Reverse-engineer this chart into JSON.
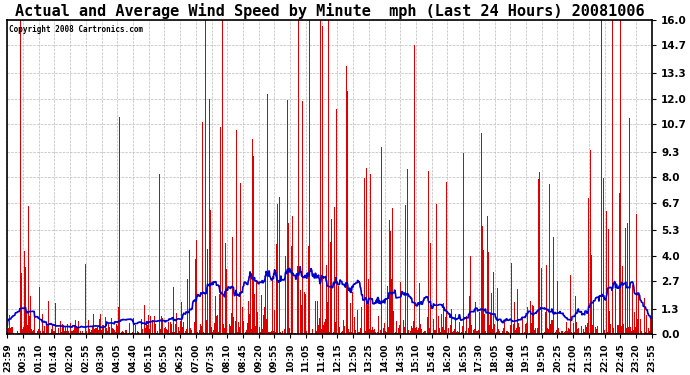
{
  "title": "Actual and Average Wind Speed by Minute  mph (Last 24 Hours) 20081006",
  "copyright": "Copyright 2008 Cartronics.com",
  "yticks": [
    0.0,
    1.3,
    2.7,
    4.0,
    5.3,
    6.7,
    8.0,
    9.3,
    10.7,
    12.0,
    13.3,
    14.7,
    16.0
  ],
  "ymax": 16.0,
  "ymin": 0.0,
  "bar_color": "#dd0000",
  "line_color": "#0000cc",
  "background_color": "#ffffff",
  "plot_bg_color": "#ffffff",
  "grid_color": "#bbbbbb",
  "title_fontsize": 11,
  "x_tick_labels": [
    "23:59",
    "00:35",
    "01:10",
    "01:45",
    "02:20",
    "02:55",
    "03:30",
    "04:05",
    "04:40",
    "05:15",
    "05:50",
    "06:25",
    "07:00",
    "07:35",
    "08:10",
    "08:45",
    "09:20",
    "09:55",
    "10:30",
    "11:05",
    "11:40",
    "12:15",
    "12:50",
    "13:25",
    "14:00",
    "14:35",
    "15:10",
    "15:45",
    "16:20",
    "16:55",
    "17:30",
    "18:05",
    "18:40",
    "19:15",
    "19:50",
    "20:25",
    "21:00",
    "21:35",
    "22:10",
    "22:45",
    "23:20",
    "23:55"
  ]
}
